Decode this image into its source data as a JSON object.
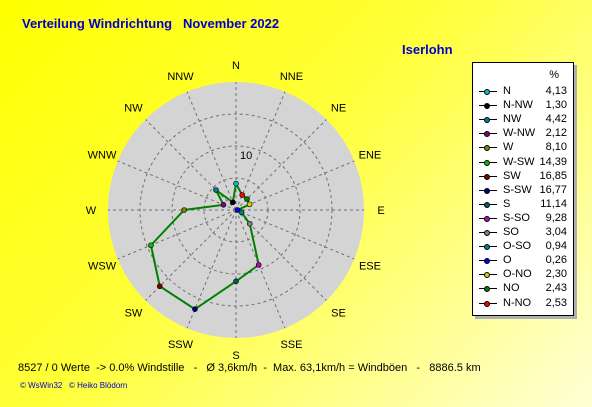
{
  "title": "Verteilung Windrichtung   November 2022",
  "location": "Iserlohn",
  "chart_data": {
    "type": "radar",
    "directions": [
      "N",
      "NNE",
      "NE",
      "ENE",
      "E",
      "ESE",
      "SE",
      "SSE",
      "S",
      "SSW",
      "SW",
      "WSW",
      "W",
      "WNW",
      "NW",
      "NNW"
    ],
    "ring_label": "10",
    "rmax": 20,
    "values": [
      4.13,
      2.53,
      2.43,
      2.3,
      0.26,
      0.94,
      3.04,
      9.28,
      11.14,
      16.77,
      16.85,
      14.39,
      8.1,
      2.12,
      4.42,
      1.3
    ],
    "point_colors": [
      "#00c0c0",
      "#ff0000",
      "#008000",
      "#d0d000",
      "#0000ff",
      "#008080",
      "#808080",
      "#c000c0",
      "#006060",
      "#000080",
      "#800000",
      "#00c000",
      "#808000",
      "#800080",
      "#008080",
      "#000000"
    ],
    "line_color": "#008000"
  },
  "legend": {
    "unit": "%",
    "items": [
      {
        "label": "N",
        "value": "4,13",
        "color": "#00c0c0"
      },
      {
        "label": "N-NW",
        "value": "1,30",
        "color": "#000000"
      },
      {
        "label": "NW",
        "value": "4,42",
        "color": "#008080"
      },
      {
        "label": "W-NW",
        "value": "2,12",
        "color": "#800080"
      },
      {
        "label": "W",
        "value": "8,10",
        "color": "#808000"
      },
      {
        "label": "W-SW",
        "value": "14,39",
        "color": "#00c000"
      },
      {
        "label": "SW",
        "value": "16,85",
        "color": "#800000"
      },
      {
        "label": "S-SW",
        "value": "16,77",
        "color": "#000080"
      },
      {
        "label": "S",
        "value": "11,14",
        "color": "#006060"
      },
      {
        "label": "S-SO",
        "value": "9,28",
        "color": "#c000c0"
      },
      {
        "label": "SO",
        "value": "3,04",
        "color": "#808080"
      },
      {
        "label": "O-SO",
        "value": "0,94",
        "color": "#008080"
      },
      {
        "label": "O",
        "value": "0,26",
        "color": "#0000ff"
      },
      {
        "label": "O-NO",
        "value": "2,30",
        "color": "#d0d000"
      },
      {
        "label": "NO",
        "value": "2,43",
        "color": "#008000"
      },
      {
        "label": "N-NO",
        "value": "2,53",
        "color": "#ff0000"
      }
    ]
  },
  "footer": "8527 / 0 Werte  -> 0.0% Windstille   -   Ø 3,6km/h  -  Max. 63,1km/h = Windböen   -   8886.5 km",
  "credits": "© WsWin32   © Heiko Blödorn"
}
